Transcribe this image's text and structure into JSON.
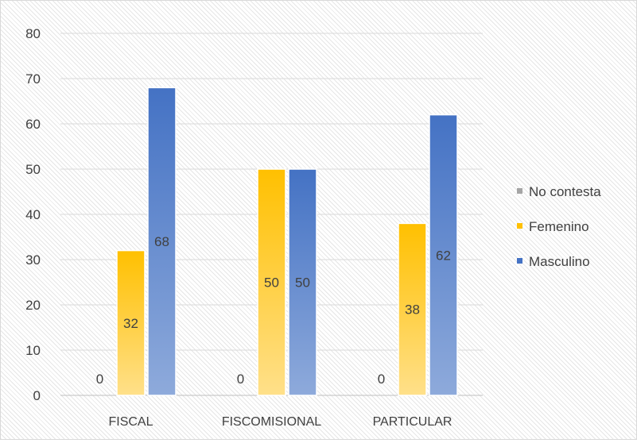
{
  "chart_data": {
    "type": "bar",
    "categories": [
      "FISCAL",
      "FISCOMISIONAL",
      "PARTICULAR"
    ],
    "series": [
      {
        "name": "No contesta",
        "values": [
          0,
          0,
          0
        ],
        "color": "#a5a5a5"
      },
      {
        "name": "Femenino",
        "values": [
          32,
          50,
          38
        ],
        "color": "#ffc000",
        "color_light": "#ffe08a"
      },
      {
        "name": "Masculino",
        "values": [
          68,
          50,
          62
        ],
        "color": "#4472c4",
        "color_light": "#8eaadb"
      }
    ],
    "data_labels": [
      [
        "0",
        "0",
        "0"
      ],
      [
        "32",
        "50",
        "38"
      ],
      [
        "68",
        "50",
        "62"
      ]
    ],
    "yticks": [
      "0",
      "10",
      "20",
      "30",
      "40",
      "50",
      "60",
      "70",
      "80"
    ],
    "ylim": [
      0,
      80
    ],
    "grid": true,
    "legend_position": "right"
  }
}
